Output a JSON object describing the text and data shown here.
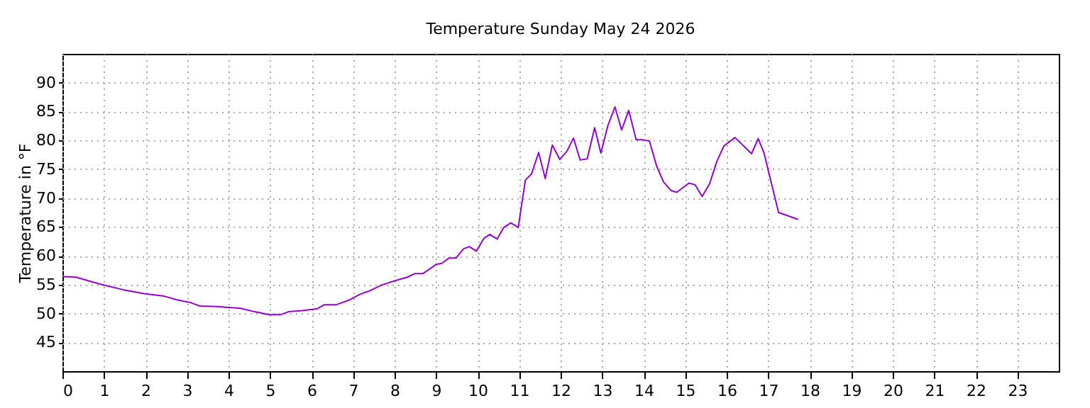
{
  "chart_data": {
    "type": "line",
    "title": "Temperature Sunday May 24 2026",
    "ylabel": "Temperature in °F",
    "xlim": [
      0,
      24
    ],
    "xticks": [
      0,
      1,
      2,
      3,
      4,
      5,
      6,
      7,
      8,
      9,
      10,
      11,
      12,
      13,
      14,
      15,
      16,
      17,
      18,
      19,
      20,
      21,
      22,
      23
    ],
    "ylim": [
      40,
      95
    ],
    "yticks": [
      45,
      50,
      55,
      60,
      65,
      70,
      75,
      80,
      85,
      90
    ],
    "grid": true,
    "line_style": "solid",
    "series": [
      {
        "color": "#9400d3",
        "x": [
          0,
          0.32,
          0.95,
          1.47,
          1.99,
          2.45,
          2.74,
          3.08,
          3.31,
          3.71,
          4.29,
          4.63,
          4.98,
          5.26,
          5.44,
          5.78,
          6.13,
          6.3,
          6.59,
          6.93,
          7.16,
          7.39,
          7.68,
          7.97,
          8.31,
          8.48,
          8.68,
          9.0,
          9.14,
          9.31,
          9.48,
          9.66,
          9.8,
          9.97,
          10.15,
          10.29,
          10.47,
          10.63,
          10.8,
          10.98,
          11.15,
          11.3,
          11.47,
          11.63,
          11.8,
          11.98,
          12.15,
          12.31,
          12.47,
          12.64,
          12.82,
          12.97,
          13.14,
          13.31,
          13.47,
          13.64,
          13.82,
          13.97,
          14.14,
          14.31,
          14.48,
          14.66,
          14.8,
          15.09,
          15.24,
          15.41,
          15.59,
          15.76,
          15.93,
          16.2,
          16.6,
          16.76,
          16.9,
          17.25,
          17.72
        ],
        "values": [
          56.4,
          56.3,
          55.0,
          54.1,
          53.4,
          53.0,
          52.4,
          51.9,
          51.3,
          51.2,
          50.9,
          50.3,
          49.8,
          49.8,
          50.3,
          50.5,
          50.8,
          51.5,
          51.5,
          52.4,
          53.3,
          53.9,
          54.9,
          55.6,
          56.3,
          56.9,
          56.9,
          58.5,
          58.7,
          59.6,
          59.6,
          61.2,
          61.6,
          60.8,
          63.0,
          63.7,
          62.9,
          64.9,
          65.7,
          64.9,
          73.1,
          74.2,
          77.9,
          73.4,
          79.2,
          76.7,
          78.1,
          80.4,
          76.6,
          76.8,
          82.2,
          77.8,
          82.6,
          85.8,
          81.8,
          85.2,
          80.1,
          80.1,
          79.9,
          75.6,
          72.8,
          71.3,
          71.0,
          72.6,
          72.3,
          70.3,
          72.5,
          76.3,
          79.0,
          80.5,
          77.7,
          80.3,
          77.8,
          67.5,
          66.3
        ]
      }
    ]
  }
}
